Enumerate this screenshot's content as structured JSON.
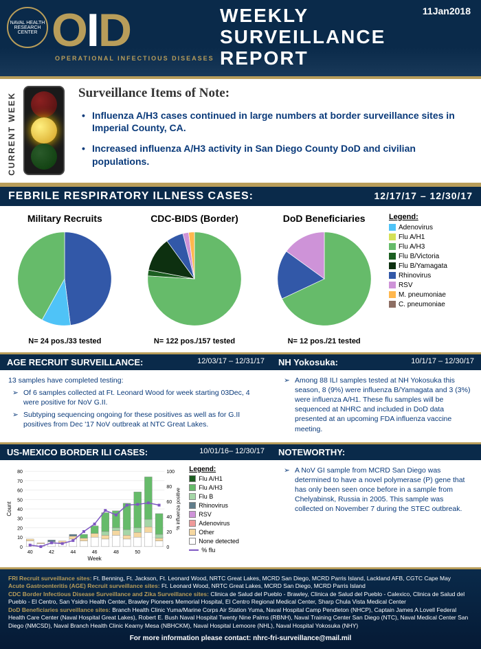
{
  "header": {
    "logo_text": "OID",
    "subtitle": "OPERATIONAL INFECTIOUS DISEASES",
    "title": "WEEKLY SURVEILLANCE REPORT",
    "date": "11Jan2018",
    "seal_text": "NAVAL HEALTH RESEARCH CENTER"
  },
  "current_week": {
    "label": "CURRENT WEEK",
    "heading": "Surveillance Items of Note:",
    "items": [
      "Influenza A/H3 cases continued in large numbers at border surveillance sites in Imperial County, CA.",
      "Increased influenza A/H3 activity in San Diego County DoD and civilian populations."
    ],
    "traffic_state": "yellow"
  },
  "fri": {
    "title": "FEBRILE  RESPIRATORY  ILLNESS  CASES:",
    "dates": "12/17/17 – 12/30/17",
    "legend_title": "Legend:",
    "legend": [
      {
        "label": "Adenovirus",
        "color": "#4fc3f7"
      },
      {
        "label": "Flu A/H1",
        "color": "#d4e157"
      },
      {
        "label": "Flu A/H3",
        "color": "#66bb6a"
      },
      {
        "label": "Flu B/Victoria",
        "color": "#1b5e20"
      },
      {
        "label": "Flu B/Yamagata",
        "color": "#0d3010"
      },
      {
        "label": "Rhinovirus",
        "color": "#3258a8"
      },
      {
        "label": "RSV",
        "color": "#ce93d8"
      },
      {
        "label": "M. pneumoniae",
        "color": "#ffb74d"
      },
      {
        "label": "C. pneumoniae",
        "color": "#8d6e63"
      }
    ],
    "pies": [
      {
        "title": "Military Recruits",
        "caption": "N= 24 pos./33 tested",
        "slices": [
          {
            "color": "#3258a8",
            "pct": 48
          },
          {
            "color": "#4fc3f7",
            "pct": 10
          },
          {
            "color": "#66bb6a",
            "pct": 42
          }
        ]
      },
      {
        "title": "CDC-BIDS (Border)",
        "caption": "N= 122 pos./157 tested",
        "slices": [
          {
            "color": "#66bb6a",
            "pct": 76
          },
          {
            "color": "#1b5e20",
            "pct": 2
          },
          {
            "color": "#0d3010",
            "pct": 12
          },
          {
            "color": "#3258a8",
            "pct": 6
          },
          {
            "color": "#ce93d8",
            "pct": 2
          },
          {
            "color": "#ffb74d",
            "pct": 2
          }
        ]
      },
      {
        "title": "DoD Beneficiaries",
        "caption": "N= 12 pos./21 tested",
        "slices": [
          {
            "color": "#66bb6a",
            "pct": 68
          },
          {
            "color": "#3258a8",
            "pct": 17
          },
          {
            "color": "#ce93d8",
            "pct": 15
          }
        ]
      }
    ]
  },
  "age_recruit": {
    "title": "AGE RECRUIT SURVEILLANCE:",
    "dates": "12/03/17 – 12/31/17",
    "intro": "13 samples have completed testing:",
    "bullets": [
      "Of 6 samples collected at Ft. Leonard Wood for week starting 03Dec, 4 were positive for NoV G.II.",
      "Subtyping sequencing ongoing for these positives as well as for G.II positives from Dec '17 NoV outbreak at NTC Great Lakes."
    ]
  },
  "yokosuka": {
    "title": "NH Yokosuka:",
    "dates": "10/1/17 – 12/30/17",
    "bullets": [
      "Among 88 ILI samples tested at NH Yokosuka this season, 8 (9%) were influenza B/Yamagata and 3 (3%) were influenza A/H1.  These flu samples will be sequenced at NHRC and included in DoD data presented at an upcoming FDA influenza vaccine meeting."
    ]
  },
  "border_ili": {
    "title": "US-MEXICO BORDER ILI CASES:",
    "dates": "10/01/16– 12/30/17",
    "y_label": "Count",
    "y2_label": "% influenza positive",
    "x_label": "Week",
    "x_ticks": [
      40,
      42,
      44,
      46,
      48,
      50
    ],
    "y_ticks": [
      0,
      10,
      20,
      30,
      40,
      50,
      60,
      70,
      80
    ],
    "y2_ticks": [
      0,
      20,
      40,
      60,
      80,
      100
    ],
    "legend_title": "Legend:",
    "legend": [
      {
        "label": "Flu A/H1",
        "color": "#1b5e20"
      },
      {
        "label": "Flu A/H3",
        "color": "#66bb6a"
      },
      {
        "label": "Flu B",
        "color": "#a5d6a7"
      },
      {
        "label": "Rhinovirus",
        "color": "#607d8b"
      },
      {
        "label": "RSV",
        "color": "#ce93d8"
      },
      {
        "label": "Adenovirus",
        "color": "#ef9a9a"
      },
      {
        "label": "Other",
        "color": "#f5d7a0"
      },
      {
        "label": "None detected",
        "color": "#ffffff"
      },
      {
        "label": "% flu",
        "color": "#7e57c2"
      }
    ],
    "weeks": [
      40,
      41,
      42,
      43,
      44,
      45,
      46,
      47,
      48,
      49,
      50,
      51,
      52
    ],
    "stacks": [
      [
        {
          "c": "#ffffff",
          "v": 6
        },
        {
          "c": "#f5d7a0",
          "v": 2
        }
      ],
      [
        {
          "c": "#ffffff",
          "v": 3
        },
        {
          "c": "#f5d7a0",
          "v": 1
        }
      ],
      [
        {
          "c": "#ffffff",
          "v": 5
        },
        {
          "c": "#607d8b",
          "v": 2
        }
      ],
      [
        {
          "c": "#ffffff",
          "v": 4
        },
        {
          "c": "#f5d7a0",
          "v": 2
        }
      ],
      [
        {
          "c": "#ffffff",
          "v": 8
        },
        {
          "c": "#f5d7a0",
          "v": 3
        },
        {
          "c": "#607d8b",
          "v": 2
        }
      ],
      [
        {
          "c": "#ffffff",
          "v": 6
        },
        {
          "c": "#f5d7a0",
          "v": 3
        },
        {
          "c": "#66bb6a",
          "v": 4
        }
      ],
      [
        {
          "c": "#ffffff",
          "v": 10
        },
        {
          "c": "#f5d7a0",
          "v": 4
        },
        {
          "c": "#66bb6a",
          "v": 8
        }
      ],
      [
        {
          "c": "#ffffff",
          "v": 8
        },
        {
          "c": "#f5d7a0",
          "v": 4
        },
        {
          "c": "#a5d6a7",
          "v": 4
        },
        {
          "c": "#66bb6a",
          "v": 20
        }
      ],
      [
        {
          "c": "#ffffff",
          "v": 12
        },
        {
          "c": "#f5d7a0",
          "v": 5
        },
        {
          "c": "#a5d6a7",
          "v": 3
        },
        {
          "c": "#66bb6a",
          "v": 18
        }
      ],
      [
        {
          "c": "#ffffff",
          "v": 8
        },
        {
          "c": "#f5d7a0",
          "v": 4
        },
        {
          "c": "#a5d6a7",
          "v": 6
        },
        {
          "c": "#66bb6a",
          "v": 28
        }
      ],
      [
        {
          "c": "#ffffff",
          "v": 10
        },
        {
          "c": "#f5d7a0",
          "v": 5
        },
        {
          "c": "#a5d6a7",
          "v": 5
        },
        {
          "c": "#66bb6a",
          "v": 38
        }
      ],
      [
        {
          "c": "#ffffff",
          "v": 15
        },
        {
          "c": "#f5d7a0",
          "v": 6
        },
        {
          "c": "#a5d6a7",
          "v": 8
        },
        {
          "c": "#66bb6a",
          "v": 45
        }
      ],
      [
        {
          "c": "#ffffff",
          "v": 6
        },
        {
          "c": "#f5d7a0",
          "v": 3
        },
        {
          "c": "#a5d6a7",
          "v": 4
        },
        {
          "c": "#66bb6a",
          "v": 22
        }
      ]
    ],
    "flu_line": [
      2,
      0,
      5,
      4,
      8,
      20,
      30,
      48,
      42,
      55,
      56,
      58,
      55
    ]
  },
  "noteworthy": {
    "title": "NOTEWORTHY:",
    "bullets": [
      "A NoV GI sample from MCRD San Diego was determined to have a novel polymerase (P) gene that has only been seen once before in a sample from Chelyabinsk, Russia in 2005.  This sample was collected on November 7 during the STEC outbreak."
    ]
  },
  "footer": {
    "lines": [
      {
        "label": "FRI Recruit surveillance sites:",
        "text": " Ft. Benning, Ft. Jackson, Ft. Leonard Wood, NRTC Great Lakes, MCRD San Diego, MCRD Parris Island, Lackland AFB, CGTC  Cape May"
      },
      {
        "label": "Acute Gastroenteritis (AGE) Recruit surveillance sites:",
        "text": " Ft. Leonard Wood, NRTC Great Lakes, MCRD San Diego, MCRD Parris Island"
      },
      {
        "label": "CDC Border Infectious Disease Surveillance and Zika Surveillance sites:",
        "text": " Clinica de Salud del Pueblo - Brawley, Clinica de Salud del Pueblo - Calexico, Clinica de Salud del Pueblo - El Centro, San Ysidro Health Center, Brawley Pioneers Memorial Hospital, El Centro Regional Medical Center, Sharp Chula Vista Medical Center"
      },
      {
        "label": "DoD Beneficiaries surveillance sites:",
        "text": "  Branch Health Clinic Yuma/Marine Corps Air Station Yuma, Naval Hospital Camp Pendleton (NHCP), Captain James A Lovell Federal Health Care Center (Naval Hospital Great Lakes), Robert E. Bush Naval Hospital Twenty Nine Palms (RBNH), Naval Training Center San Diego (NTC), Naval Medical Center San Diego (NMCSD), Naval Branch Health Clinic Kearny Mesa (NBHCKM), Naval Hospital Lemoore (NHL), Naval Hospital Yokosuka (NHY)"
      }
    ],
    "contact": "For more information please contact: nhrc-fri-surveillance@mail.mil"
  },
  "colors": {
    "navy": "#0a2a4a",
    "gold": "#b89d5a",
    "text_blue": "#0a3a7a"
  }
}
